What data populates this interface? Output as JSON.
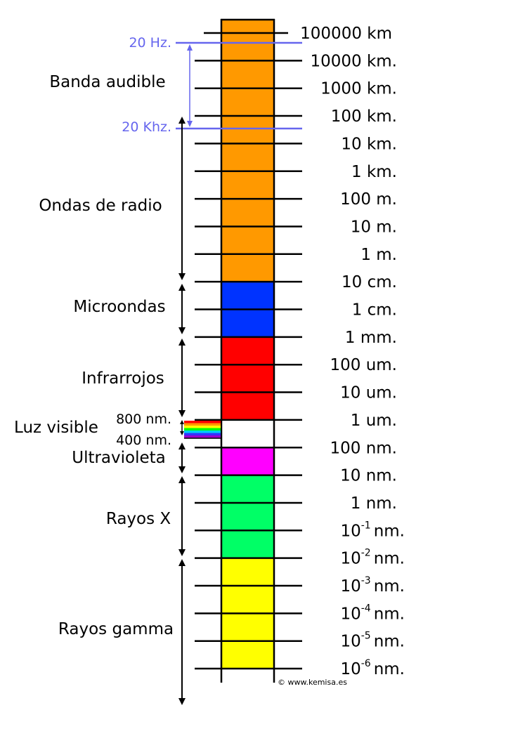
{
  "colors": {
    "radio": "#ff9900",
    "microwave": "#0033ff",
    "infrared": "#ff0000",
    "visible": "#ffffff",
    "ultraviolet": "#ff00ff",
    "xray": "#00ff66",
    "gamma": "#ffff00",
    "audible_marker": "#6666ee",
    "line": "#000000"
  },
  "scale": [
    {
      "value": "100000 km"
    },
    {
      "value": "10000 km."
    },
    {
      "value": "1000 km."
    },
    {
      "value": "100 km."
    },
    {
      "value": "10 km."
    },
    {
      "value": "1 km."
    },
    {
      "value": "100 m."
    },
    {
      "value": "10 m."
    },
    {
      "value": "1 m."
    },
    {
      "value": "10 cm."
    },
    {
      "value": "1 cm."
    },
    {
      "value": "1 mm."
    },
    {
      "value": "100 um."
    },
    {
      "value": "10 um."
    },
    {
      "value": "1 um."
    },
    {
      "value": "100 nm."
    },
    {
      "value": "10 nm."
    },
    {
      "value": "1 nm."
    },
    {
      "mantissa": "10",
      "exponent": "-1",
      "unit": "nm."
    },
    {
      "mantissa": "10",
      "exponent": "-2",
      "unit": "nm."
    },
    {
      "mantissa": "10",
      "exponent": "-3",
      "unit": "nm."
    },
    {
      "mantissa": "10",
      "exponent": "-4",
      "unit": "nm."
    },
    {
      "mantissa": "10",
      "exponent": "-5",
      "unit": "nm."
    },
    {
      "mantissa": "10",
      "exponent": "-6",
      "unit": "nm."
    }
  ],
  "bands": {
    "audible": "Banda audible",
    "radio": "Ondas de radio",
    "microwave": "Microondas",
    "infrared": "Infrarrojos",
    "visible": "Luz visible",
    "ultraviolet": "Ultravioleta",
    "xray": "Rayos X",
    "gamma": "Rayos gamma"
  },
  "markers": {
    "hz20": "20 Hz.",
    "khz20": "20 Khz.",
    "nm800": "800 nm.",
    "nm400": "400 nm."
  },
  "credit": "© www.kemisa.es"
}
